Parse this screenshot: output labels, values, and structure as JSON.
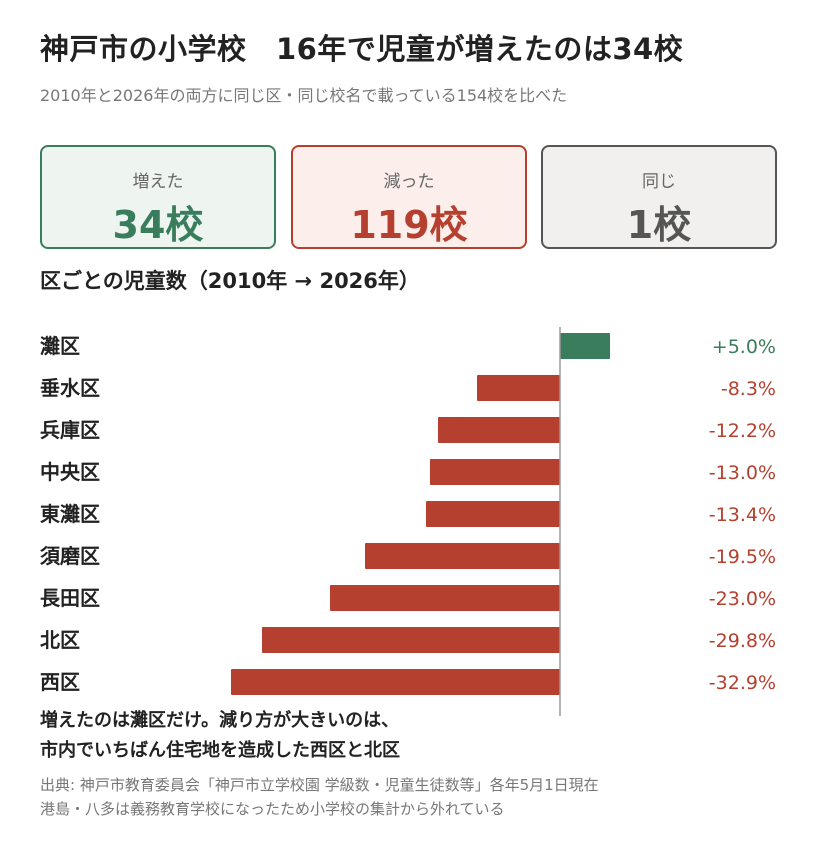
{
  "header": {
    "title": "神戸市の小学校　16年で児童が増えたのは34校",
    "subtitle": "2010年と2026年の両方に同じ区・同じ校名で載っている154校を比べた"
  },
  "summary": {
    "increased": {
      "label": "増えた",
      "value": "34校"
    },
    "decreased": {
      "label": "減った",
      "value": "119校"
    },
    "same": {
      "label": "同じ",
      "value": "1校"
    }
  },
  "section_title": "区ごとの児童数（2010年 → 2026年）",
  "colors": {
    "positive": "#3a7d5c",
    "negative": "#b5402f",
    "axis": "#9a9a9a"
  },
  "chart_data": {
    "type": "bar",
    "orientation": "horizontal",
    "categories": [
      "灘区",
      "垂水区",
      "兵庫区",
      "中央区",
      "東灘区",
      "須磨区",
      "長田区",
      "北区",
      "西区"
    ],
    "values": [
      5.0,
      -8.3,
      -12.2,
      -13.0,
      -13.4,
      -19.5,
      -23.0,
      -29.8,
      -32.9
    ],
    "value_labels": [
      "+5.0%",
      "-8.3%",
      "-12.2%",
      "-13.0%",
      "-13.4%",
      "-19.5%",
      "-23.0%",
      "-29.8%",
      "-32.9%"
    ],
    "unit": "%",
    "xlim": [
      -33,
      5
    ]
  },
  "note": {
    "line1": "増えたのは灘区だけ。減り方が大きいのは、",
    "line2": "市内でいちばん住宅地を造成した西区と北区"
  },
  "source": {
    "line1": "出典: 神戸市教育委員会「神戸市立学校園 学級数・児童生徒数等」各年5月1日現在",
    "line2": "港島・八多は義務教育学校になったため小学校の集計から外れている"
  }
}
